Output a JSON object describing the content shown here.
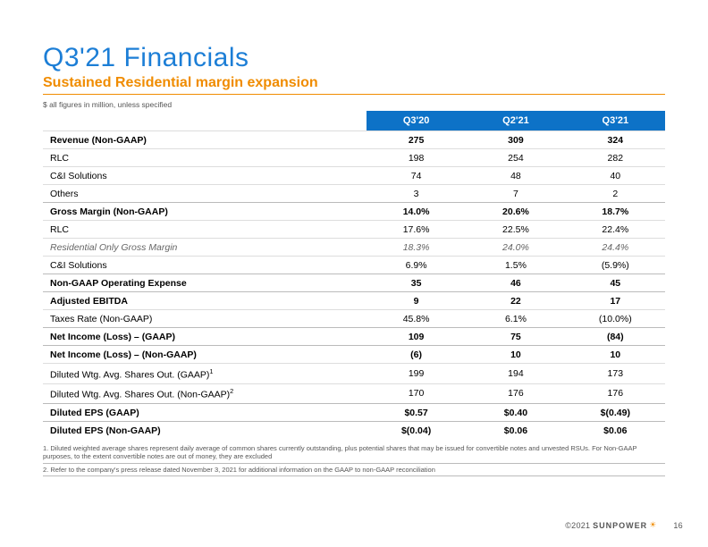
{
  "title": "Q3'21 Financials",
  "subtitle": "Sustained Residential  margin expansion",
  "caption": "$ all figures in million, unless specified",
  "columns": [
    "Q3'20",
    "Q2'21",
    "Q3'21"
  ],
  "rows": [
    {
      "label": "Revenue (Non-GAAP)",
      "v": [
        "275",
        "309",
        "324"
      ],
      "bold": true
    },
    {
      "label": "RLC",
      "v": [
        "198",
        "254",
        "282"
      ]
    },
    {
      "label": "C&I Solutions",
      "v": [
        "74",
        "48",
        "40"
      ]
    },
    {
      "label": "Others",
      "v": [
        "3",
        "7",
        "2"
      ]
    },
    {
      "label": "Gross Margin (Non-GAAP)",
      "v": [
        "14.0%",
        "20.6%",
        "18.7%"
      ],
      "bold": true,
      "greyline": true
    },
    {
      "label": "RLC",
      "v": [
        "17.6%",
        "22.5%",
        "22.4%"
      ]
    },
    {
      "label": "Residential Only Gross Margin",
      "v": [
        "18.3%",
        "24.0%",
        "24.4%"
      ],
      "italic": true
    },
    {
      "label": "C&I Solutions",
      "v": [
        "6.9%",
        "1.5%",
        "(5.9%)"
      ]
    },
    {
      "label": "Non-GAAP Operating Expense",
      "v": [
        "35",
        "46",
        "45"
      ],
      "bold": true,
      "greyline": true
    },
    {
      "label": "Adjusted EBITDA",
      "v": [
        "9",
        "22",
        "17"
      ],
      "bold": true,
      "greyline": true
    },
    {
      "label": "Taxes Rate (Non-GAAP)",
      "v": [
        "45.8%",
        "6.1%",
        "(10.0%)"
      ]
    },
    {
      "label": "Net Income (Loss) – (GAAP)",
      "v": [
        "109",
        "75",
        "(84)"
      ],
      "bold": true,
      "greyline": true
    },
    {
      "label": "Net Income (Loss) – (Non-GAAP)",
      "v": [
        "(6)",
        "10",
        "10"
      ],
      "bold": true,
      "greyline": true
    },
    {
      "label_html": "Diluted Wtg. Avg. Shares Out. (GAAP)<sup>1</sup>",
      "v": [
        "199",
        "194",
        "173"
      ]
    },
    {
      "label_html": "Diluted Wtg. Avg. Shares Out. (Non-GAAP)<sup>2</sup>",
      "v": [
        "170",
        "176",
        "176"
      ]
    },
    {
      "label": "Diluted EPS (GAAP)",
      "v": [
        "$0.57",
        "$0.40",
        "$(0.49)"
      ],
      "bold": true,
      "greyline": true
    },
    {
      "label": "Diluted EPS (Non-GAAP)",
      "v": [
        "$(0.04)",
        "$0.06",
        "$0.06"
      ],
      "bold": true,
      "greyline": true
    }
  ],
  "footnotes": [
    "1. Diluted weighted average shares represent daily average of common shares currently outstanding, plus potential shares that may be issued for convertible notes and unvested RSUs. For Non-GAAP purposes, to the extent convertible notes are out of money, they are excluded",
    "2. Refer to the company's press release dated November 3, 2021 for additional information on the GAAP to non-GAAP reconciliation"
  ],
  "footer": {
    "copyright": "©2021",
    "brand": "SUNPOWER",
    "page": "16"
  },
  "colors": {
    "title": "#1c7ed6",
    "accent": "#f08c00",
    "header_bg": "#0d72c7",
    "header_fg": "#ffffff",
    "body_text": "#222222",
    "grid": "#dddddd"
  }
}
